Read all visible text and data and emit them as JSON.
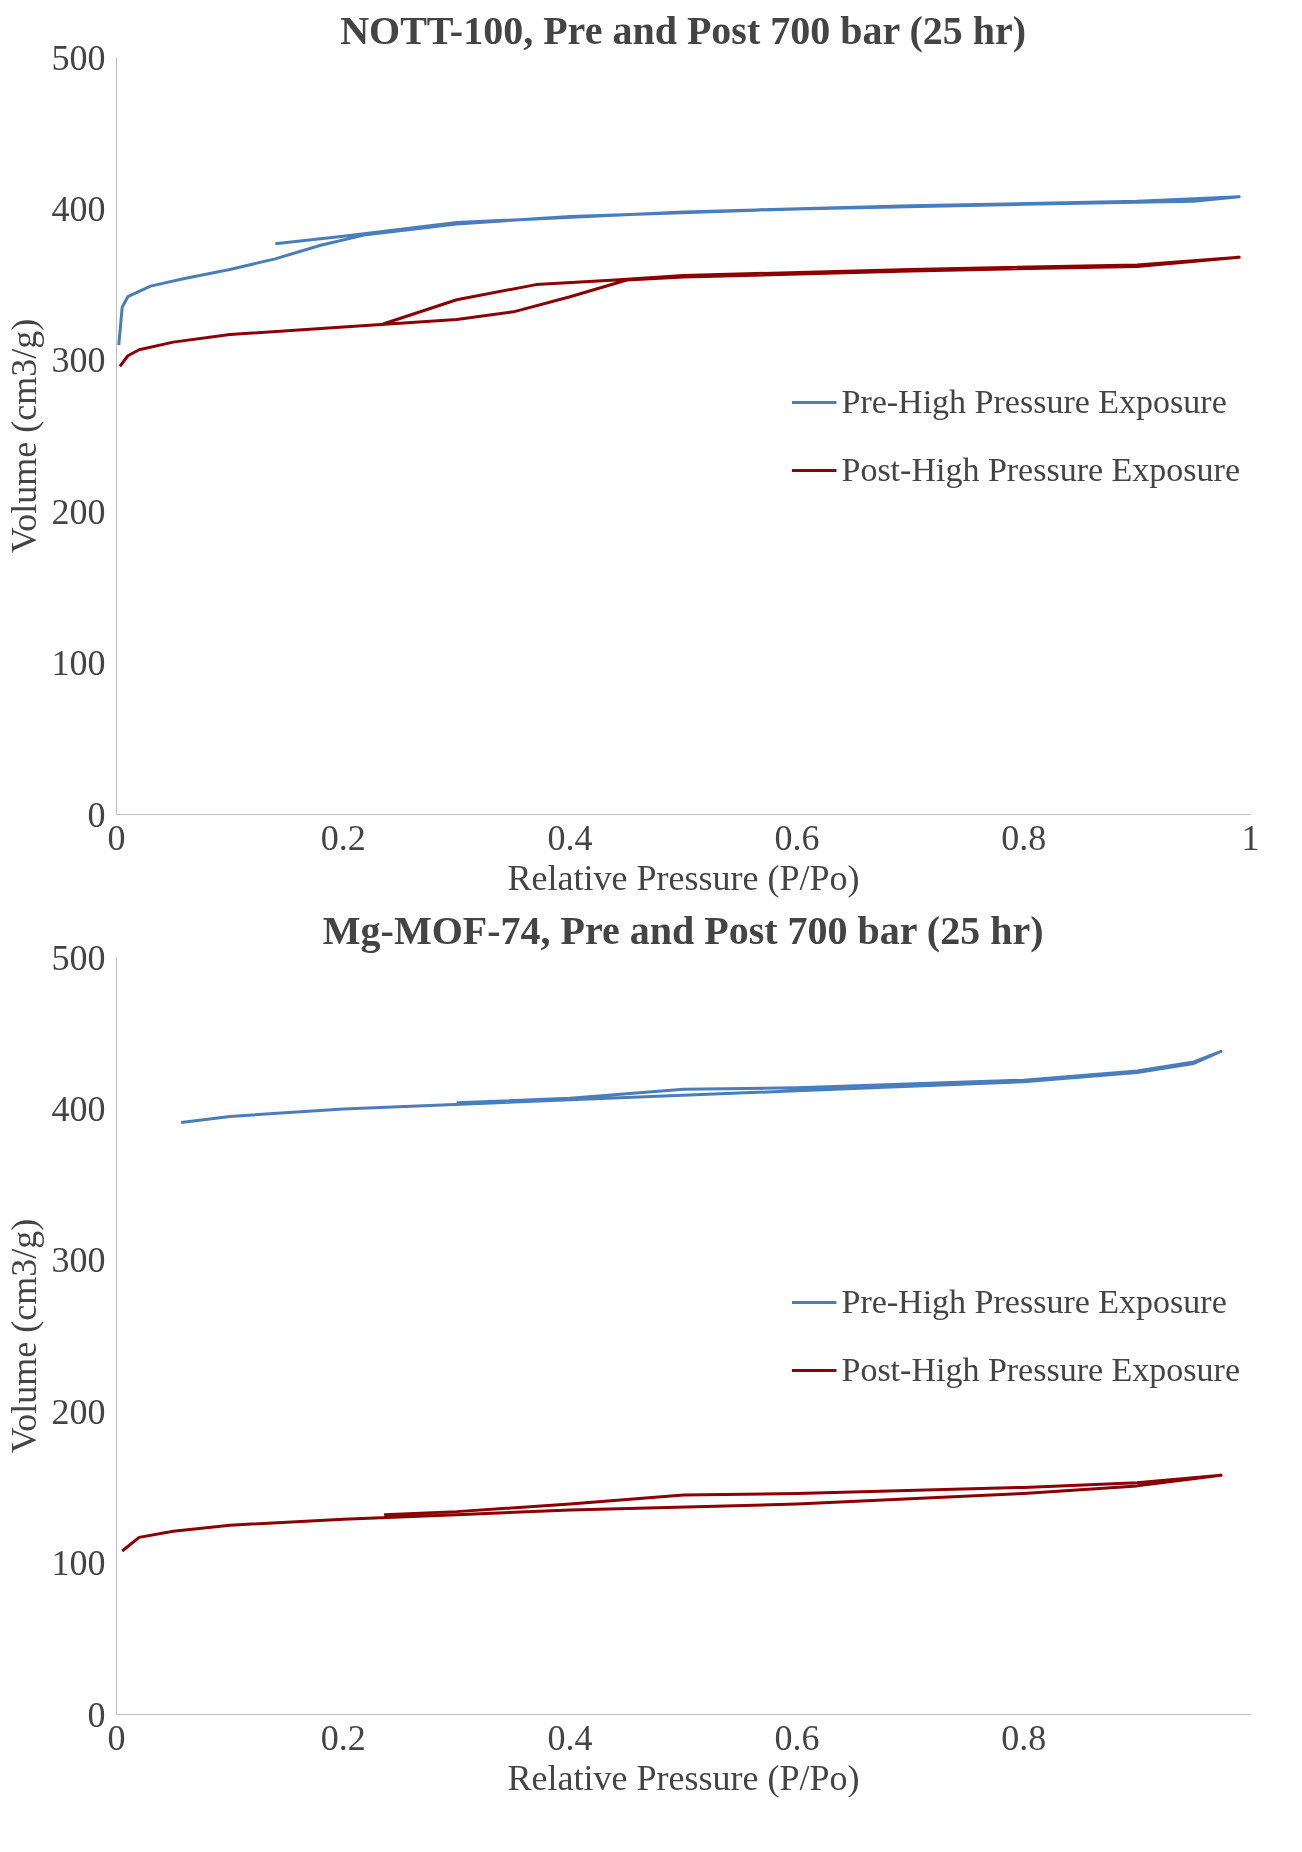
{
  "chart_data": [
    {
      "type": "line",
      "title": "NOTT-100, Pre and Post 700 bar (25 hr)",
      "xlabel": "Relative Pressure (P/Po)",
      "ylabel": "Volume (cm3/g)",
      "xlim": [
        0,
        1
      ],
      "ylim": [
        0,
        500
      ],
      "xticks": [
        0,
        0.2,
        0.4,
        0.6,
        0.8,
        1
      ],
      "yticks": [
        0,
        100,
        200,
        300,
        400,
        500
      ],
      "grid": false,
      "legend": "right",
      "marker": "none",
      "line_style": "solid",
      "series": [
        {
          "name": "Pre-High Pressure Exposure",
          "color": "#4a7ebb",
          "x": [
            0.002,
            0.005,
            0.01,
            0.03,
            0.06,
            0.1,
            0.14,
            0.18,
            0.22,
            0.3,
            0.4,
            0.6,
            0.8,
            0.95,
            0.99,
            0.9,
            0.7,
            0.5,
            0.3,
            0.2,
            0.14
          ],
          "values": [
            310,
            335,
            342,
            349,
            354,
            360,
            367,
            376,
            383,
            390,
            395,
            400,
            403,
            405,
            408,
            405,
            402,
            398,
            391,
            382,
            377
          ]
        },
        {
          "name": "Post-High Pressure Exposure",
          "color": "#8b0000",
          "x": [
            0.003,
            0.01,
            0.02,
            0.05,
            0.1,
            0.2,
            0.3,
            0.35,
            0.4,
            0.45,
            0.5,
            0.7,
            0.9,
            0.99,
            0.9,
            0.7,
            0.5,
            0.44,
            0.37,
            0.3,
            0.235
          ],
          "values": [
            296,
            303,
            307,
            312,
            317,
            322,
            327,
            332,
            342,
            353,
            355,
            359,
            362,
            368,
            363,
            360,
            356,
            353,
            350,
            340,
            324
          ]
        }
      ]
    },
    {
      "type": "line",
      "title": "Mg-MOF-74, Pre and Post 700 bar (25 hr)",
      "xlabel": "Relative Pressure (P/Po)",
      "ylabel": "Volume (cm3/g)",
      "xlim": [
        0,
        1
      ],
      "ylim": [
        0,
        500
      ],
      "xticks": [
        0,
        0.2,
        0.4,
        0.6,
        0.8
      ],
      "yticks": [
        0,
        100,
        200,
        300,
        400,
        500
      ],
      "grid": false,
      "legend": "right",
      "marker": "none",
      "line_style": "solid",
      "series": [
        {
          "name": "Pre-High Pressure Exposure",
          "color": "#4a7ebb",
          "x": [
            0.057,
            0.1,
            0.2,
            0.4,
            0.6,
            0.8,
            0.9,
            0.95,
            0.974,
            0.95,
            0.9,
            0.8,
            0.6,
            0.5,
            0.4,
            0.3
          ],
          "values": [
            391,
            395,
            400,
            406,
            412,
            418,
            424,
            430,
            438,
            431,
            425,
            419,
            414,
            413,
            407,
            404
          ]
        },
        {
          "name": "Post-High Pressure Exposure",
          "color": "#8b0000",
          "x": [
            0.005,
            0.02,
            0.05,
            0.1,
            0.2,
            0.3,
            0.4,
            0.6,
            0.8,
            0.9,
            0.974,
            0.9,
            0.8,
            0.6,
            0.5,
            0.4,
            0.3,
            0.236
          ],
          "values": [
            108,
            117,
            121,
            125,
            129,
            132,
            135,
            139,
            146,
            151,
            158,
            153,
            150,
            146,
            145,
            139,
            134,
            132
          ]
        }
      ]
    }
  ]
}
